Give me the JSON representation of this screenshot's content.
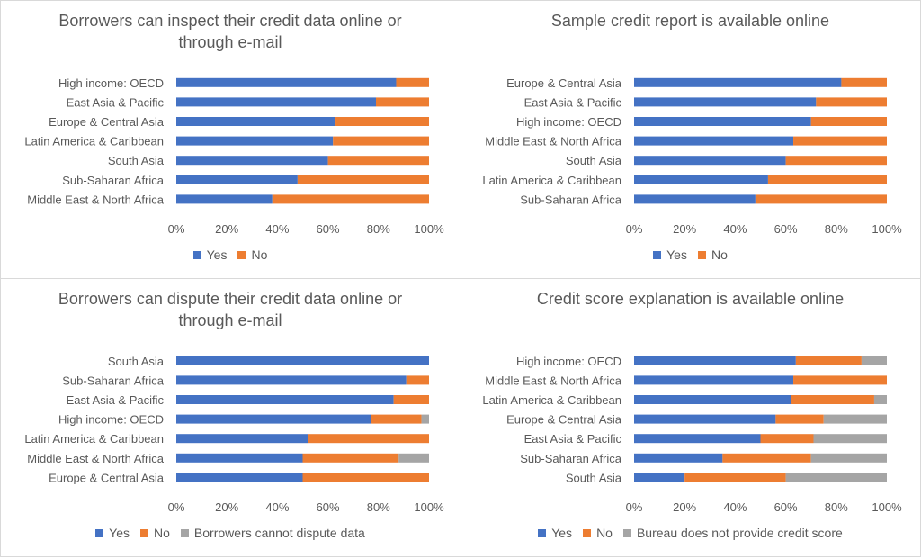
{
  "colors": {
    "yes": "#4472C4",
    "no": "#ED7D31",
    "third": "#A5A5A5"
  },
  "chart_data": [
    {
      "type": "bar",
      "title": "Borrowers can inspect their credit data online or through e-mail",
      "title_lines": [
        "Borrowers can inspect their credit data online or",
        "through e-mail"
      ],
      "stacked": "percent",
      "categories": [
        "High income: OECD",
        "East Asia & Pacific",
        "Europe & Central Asia",
        "Latin America & Caribbean",
        "South Asia",
        "Sub-Saharan Africa",
        "Middle East & North Africa"
      ],
      "series": [
        {
          "name": "Yes",
          "values": [
            87,
            79,
            63,
            62,
            60,
            48,
            38
          ]
        },
        {
          "name": "No",
          "values": [
            13,
            21,
            37,
            38,
            40,
            52,
            62
          ]
        }
      ],
      "ticks": [
        "0%",
        "20%",
        "40%",
        "60%",
        "80%",
        "100%"
      ],
      "xlim": [
        0,
        100
      ],
      "grid": false,
      "legend": "bottom"
    },
    {
      "type": "bar",
      "title": "Sample credit report is available online",
      "title_lines": [
        "Sample credit report is available online"
      ],
      "stacked": "percent",
      "categories": [
        "Europe & Central Asia",
        "East Asia & Pacific",
        "High income: OECD",
        "Middle East & North Africa",
        "South Asia",
        "Latin America & Caribbean",
        "Sub-Saharan Africa"
      ],
      "series": [
        {
          "name": "Yes",
          "values": [
            82,
            72,
            70,
            63,
            60,
            53,
            48
          ]
        },
        {
          "name": "No",
          "values": [
            18,
            28,
            30,
            37,
            40,
            47,
            52
          ]
        }
      ],
      "ticks": [
        "0%",
        "20%",
        "40%",
        "60%",
        "80%",
        "100%"
      ],
      "xlim": [
        0,
        100
      ],
      "grid": false,
      "legend": "bottom"
    },
    {
      "type": "bar",
      "title": "Borrowers can dispute their credit data online or through e-mail",
      "title_lines": [
        "Borrowers can dispute their credit data online or",
        "through e-mail"
      ],
      "stacked": "percent",
      "categories": [
        "South Asia",
        "Sub-Saharan Africa",
        "East Asia & Pacific",
        "High income: OECD",
        "Latin America & Caribbean",
        "Middle East & North Africa",
        "Europe & Central Asia"
      ],
      "series": [
        {
          "name": "Yes",
          "values": [
            100,
            91,
            86,
            77,
            52,
            50,
            50
          ]
        },
        {
          "name": "No",
          "values": [
            0,
            9,
            14,
            20,
            48,
            38,
            50
          ]
        },
        {
          "name": "Borrowers cannot dispute data",
          "values": [
            0,
            0,
            0,
            3,
            0,
            12,
            0
          ]
        }
      ],
      "ticks": [
        "0%",
        "20%",
        "40%",
        "60%",
        "80%",
        "100%"
      ],
      "xlim": [
        0,
        100
      ],
      "grid": false,
      "legend": "bottom"
    },
    {
      "type": "bar",
      "title": "Credit score explanation is available online",
      "title_lines": [
        "Credit score explanation is available online"
      ],
      "stacked": "percent",
      "categories": [
        "High income: OECD",
        "Middle East & North Africa",
        "Latin America & Caribbean",
        "Europe & Central Asia",
        "East Asia & Pacific",
        "Sub-Saharan Africa",
        "South Asia"
      ],
      "series": [
        {
          "name": "Yes",
          "values": [
            64,
            63,
            62,
            56,
            50,
            35,
            20
          ]
        },
        {
          "name": "No",
          "values": [
            26,
            37,
            33,
            19,
            21,
            35,
            40
          ]
        },
        {
          "name": "Bureau does not provide credit score",
          "values": [
            10,
            0,
            5,
            25,
            29,
            30,
            40
          ]
        }
      ],
      "ticks": [
        "0%",
        "20%",
        "40%",
        "60%",
        "80%",
        "100%"
      ],
      "xlim": [
        0,
        100
      ],
      "grid": false,
      "legend": "bottom"
    }
  ]
}
